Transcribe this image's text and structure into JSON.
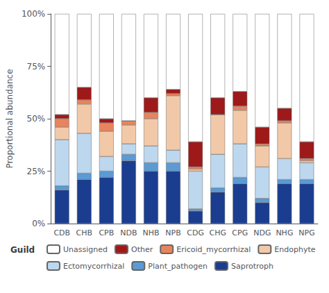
{
  "chart_data": {
    "type": "bar",
    "stacked": true,
    "categories": [
      "CDB",
      "CHB",
      "CPB",
      "NDB",
      "NHB",
      "NPB",
      "CDG",
      "CHG",
      "CPG",
      "NDG",
      "NHG",
      "NPG"
    ],
    "series": [
      {
        "name": "Saprotroph",
        "color": "#1a3d8f",
        "values": [
          0.16,
          0.21,
          0.22,
          0.3,
          0.25,
          0.25,
          0.06,
          0.15,
          0.19,
          0.1,
          0.19,
          0.19
        ]
      },
      {
        "name": "Plant_pathogen",
        "color": "#5b9bd5",
        "values": [
          0.02,
          0.03,
          0.03,
          0.03,
          0.04,
          0.04,
          0.01,
          0.02,
          0.03,
          0.02,
          0.02,
          0.02
        ]
      },
      {
        "name": "Ectomycorrhizal",
        "color": "#bdd7ee",
        "values": [
          0.22,
          0.19,
          0.07,
          0.05,
          0.08,
          0.06,
          0.18,
          0.16,
          0.16,
          0.15,
          0.1,
          0.08
        ]
      },
      {
        "name": "Endophyte",
        "color": "#f2c9a8",
        "values": [
          0.06,
          0.14,
          0.12,
          0.09,
          0.13,
          0.26,
          0.01,
          0.19,
          0.16,
          0.1,
          0.17,
          0.01
        ]
      },
      {
        "name": "Ericoid_mycorrhizal",
        "color": "#e8845c",
        "values": [
          0.04,
          0.02,
          0.04,
          0.02,
          0.03,
          0.01,
          0.01,
          0.0,
          0.02,
          0.01,
          0.01,
          0.01
        ]
      },
      {
        "name": "Other",
        "color": "#9e1a1a",
        "values": [
          0.02,
          0.06,
          0.02,
          0.0,
          0.07,
          0.02,
          0.12,
          0.08,
          0.07,
          0.08,
          0.06,
          0.08
        ]
      },
      {
        "name": "Unassigned",
        "color": "#ffffff",
        "values": [
          0.48,
          0.35,
          0.5,
          0.51,
          0.4,
          0.36,
          0.61,
          0.4,
          0.37,
          0.54,
          0.45,
          0.61
        ]
      }
    ],
    "ylabel": "Proportional abundance",
    "ylim": [
      0,
      1.0
    ],
    "yticks": [
      {
        "value": 0.0,
        "label": "0%"
      },
      {
        "value": 0.25,
        "label": "25%"
      },
      {
        "value": 0.5,
        "label": "50%"
      },
      {
        "value": 0.75,
        "label": "75%"
      },
      {
        "value": 1.0,
        "label": "100%"
      }
    ],
    "grid": false,
    "legend": "bottom",
    "legend_title": "Guild"
  }
}
